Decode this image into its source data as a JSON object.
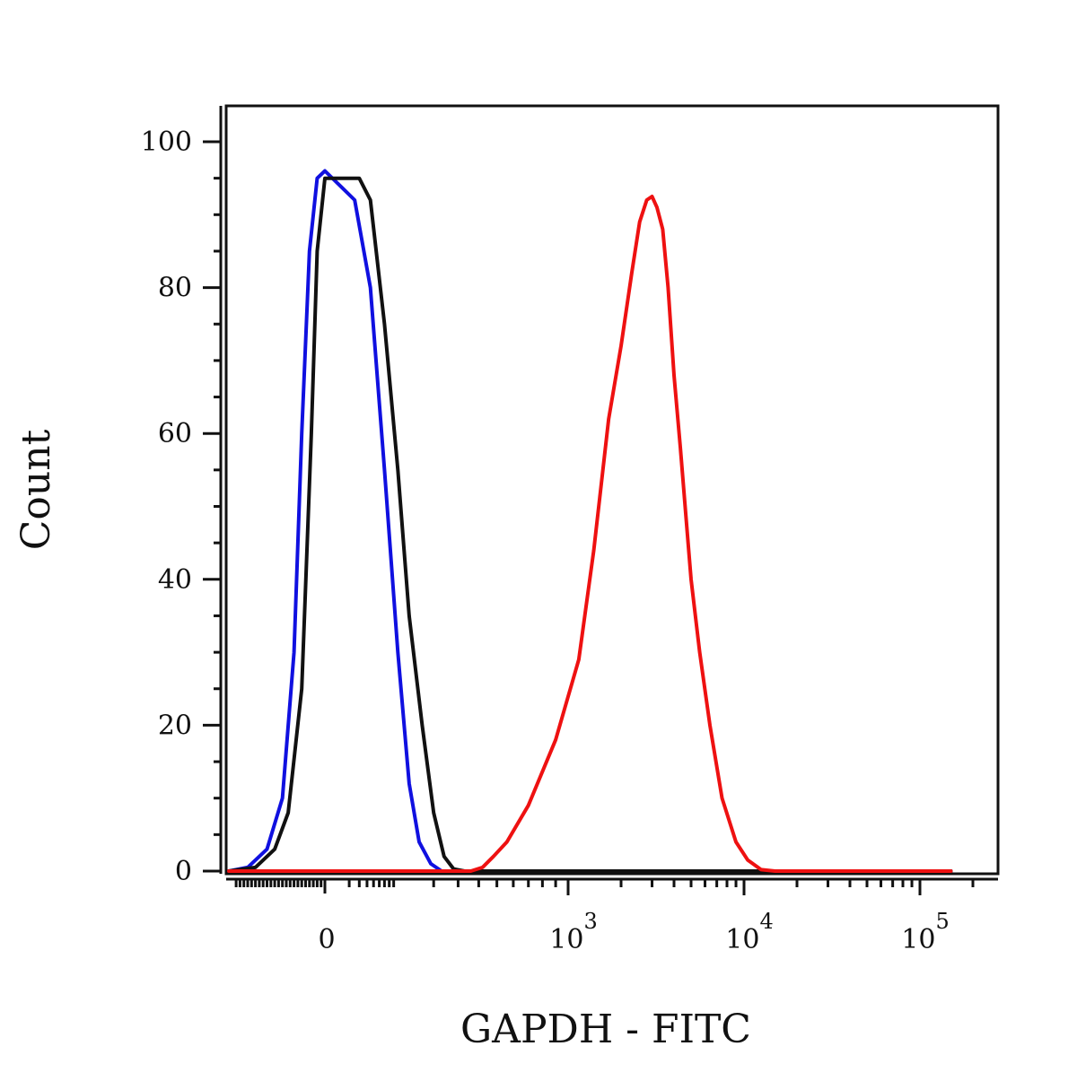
{
  "chart_data": {
    "type": "line",
    "xlabel": "GAPDH - FITC",
    "ylabel": "Count",
    "x_scale": "biexponential",
    "ylim": [
      0,
      100
    ],
    "grid": false,
    "y_ticks": [
      "0",
      "20",
      "40",
      "60",
      "80",
      "100"
    ],
    "x_ticks": [
      {
        "label": "0",
        "base": "0",
        "exp": ""
      },
      {
        "label": "10^3",
        "base": "10",
        "exp": "3"
      },
      {
        "label": "10^4",
        "base": "10",
        "exp": "4"
      },
      {
        "label": "10^5",
        "base": "10",
        "exp": "5"
      }
    ],
    "series": [
      {
        "color": "#1010e0",
        "points": [
          [
            -250,
            0
          ],
          [
            -200,
            0.5
          ],
          [
            -150,
            3
          ],
          [
            -110,
            10
          ],
          [
            -80,
            30
          ],
          [
            -60,
            60
          ],
          [
            -40,
            85
          ],
          [
            -20,
            95
          ],
          [
            0,
            96
          ],
          [
            15,
            92
          ],
          [
            35,
            80
          ],
          [
            60,
            55
          ],
          [
            90,
            30
          ],
          [
            120,
            12
          ],
          [
            150,
            4
          ],
          [
            190,
            1
          ],
          [
            230,
            0
          ],
          [
            300,
            0
          ],
          [
            10000,
            0
          ],
          [
            150000,
            0
          ]
        ]
      },
      {
        "color": "#111111",
        "points": [
          [
            -250,
            0
          ],
          [
            -180,
            0.5
          ],
          [
            -130,
            3
          ],
          [
            -95,
            8
          ],
          [
            -60,
            25
          ],
          [
            -35,
            60
          ],
          [
            -20,
            85
          ],
          [
            0,
            95
          ],
          [
            20,
            95
          ],
          [
            35,
            92
          ],
          [
            60,
            75
          ],
          [
            90,
            55
          ],
          [
            120,
            35
          ],
          [
            160,
            20
          ],
          [
            200,
            8
          ],
          [
            240,
            2
          ],
          [
            280,
            0.3
          ],
          [
            330,
            0
          ],
          [
            10000,
            0
          ],
          [
            150000,
            0
          ]
        ]
      },
      {
        "color": "#ee1111",
        "points": [
          [
            -250,
            0
          ],
          [
            300,
            0
          ],
          [
            360,
            0
          ],
          [
            420,
            0.5
          ],
          [
            480,
            2
          ],
          [
            560,
            4
          ],
          [
            700,
            9
          ],
          [
            900,
            18
          ],
          [
            1150,
            29
          ],
          [
            1400,
            44
          ],
          [
            1700,
            62
          ],
          [
            2000,
            72
          ],
          [
            2300,
            82
          ],
          [
            2550,
            89
          ],
          [
            2800,
            92
          ],
          [
            3000,
            92.5
          ],
          [
            3200,
            91
          ],
          [
            3450,
            88
          ],
          [
            3700,
            80
          ],
          [
            4000,
            68
          ],
          [
            4350,
            58
          ],
          [
            4700,
            48
          ],
          [
            5000,
            40
          ],
          [
            5600,
            30
          ],
          [
            6400,
            20
          ],
          [
            7500,
            10
          ],
          [
            9000,
            4
          ],
          [
            10500,
            1.5
          ],
          [
            12500,
            0.2
          ],
          [
            15000,
            0
          ],
          [
            150000,
            0
          ]
        ]
      }
    ]
  }
}
